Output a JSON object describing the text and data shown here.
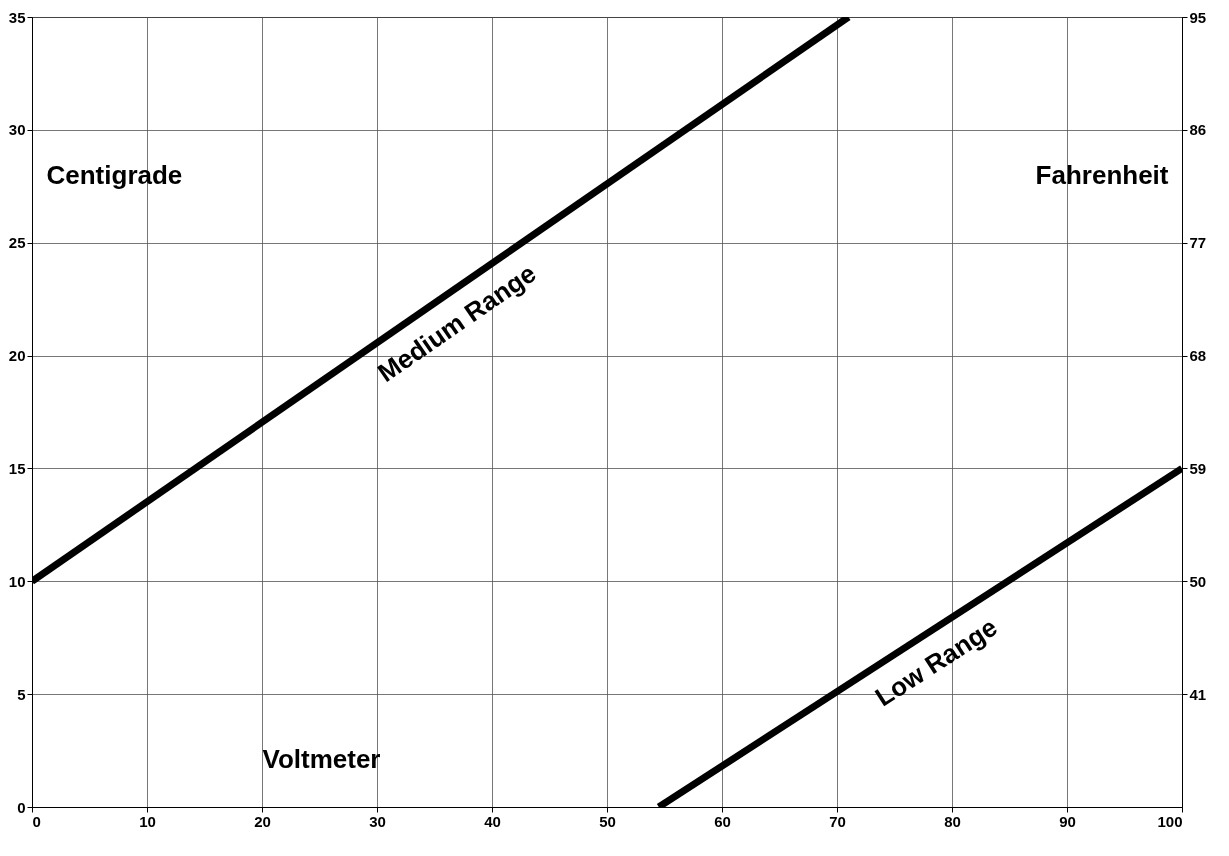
{
  "chart_data": {
    "type": "line",
    "xlabel": "Voltmeter",
    "ylabel": "Centigrade",
    "y2label": "Fahrenheit",
    "xlim": [
      0,
      100
    ],
    "xticks": [
      0,
      10,
      20,
      30,
      40,
      50,
      60,
      70,
      80,
      90,
      100
    ],
    "ylim": [
      0,
      35
    ],
    "yticks": [
      0,
      5,
      10,
      15,
      20,
      25,
      30,
      35
    ],
    "y2lim": [
      32,
      95
    ],
    "y2ticks": [
      41,
      50,
      59,
      68,
      77,
      86,
      95
    ],
    "grid": true,
    "legend": false,
    "line_style": "solid",
    "series": [
      {
        "name": "Medium Range",
        "color": "#000000",
        "x": [
          0,
          71
        ],
        "values": [
          10,
          35
        ]
      },
      {
        "name": "Low Range",
        "color": "#000000",
        "x": [
          54.5,
          100
        ],
        "values": [
          0,
          15
        ]
      }
    ]
  }
}
